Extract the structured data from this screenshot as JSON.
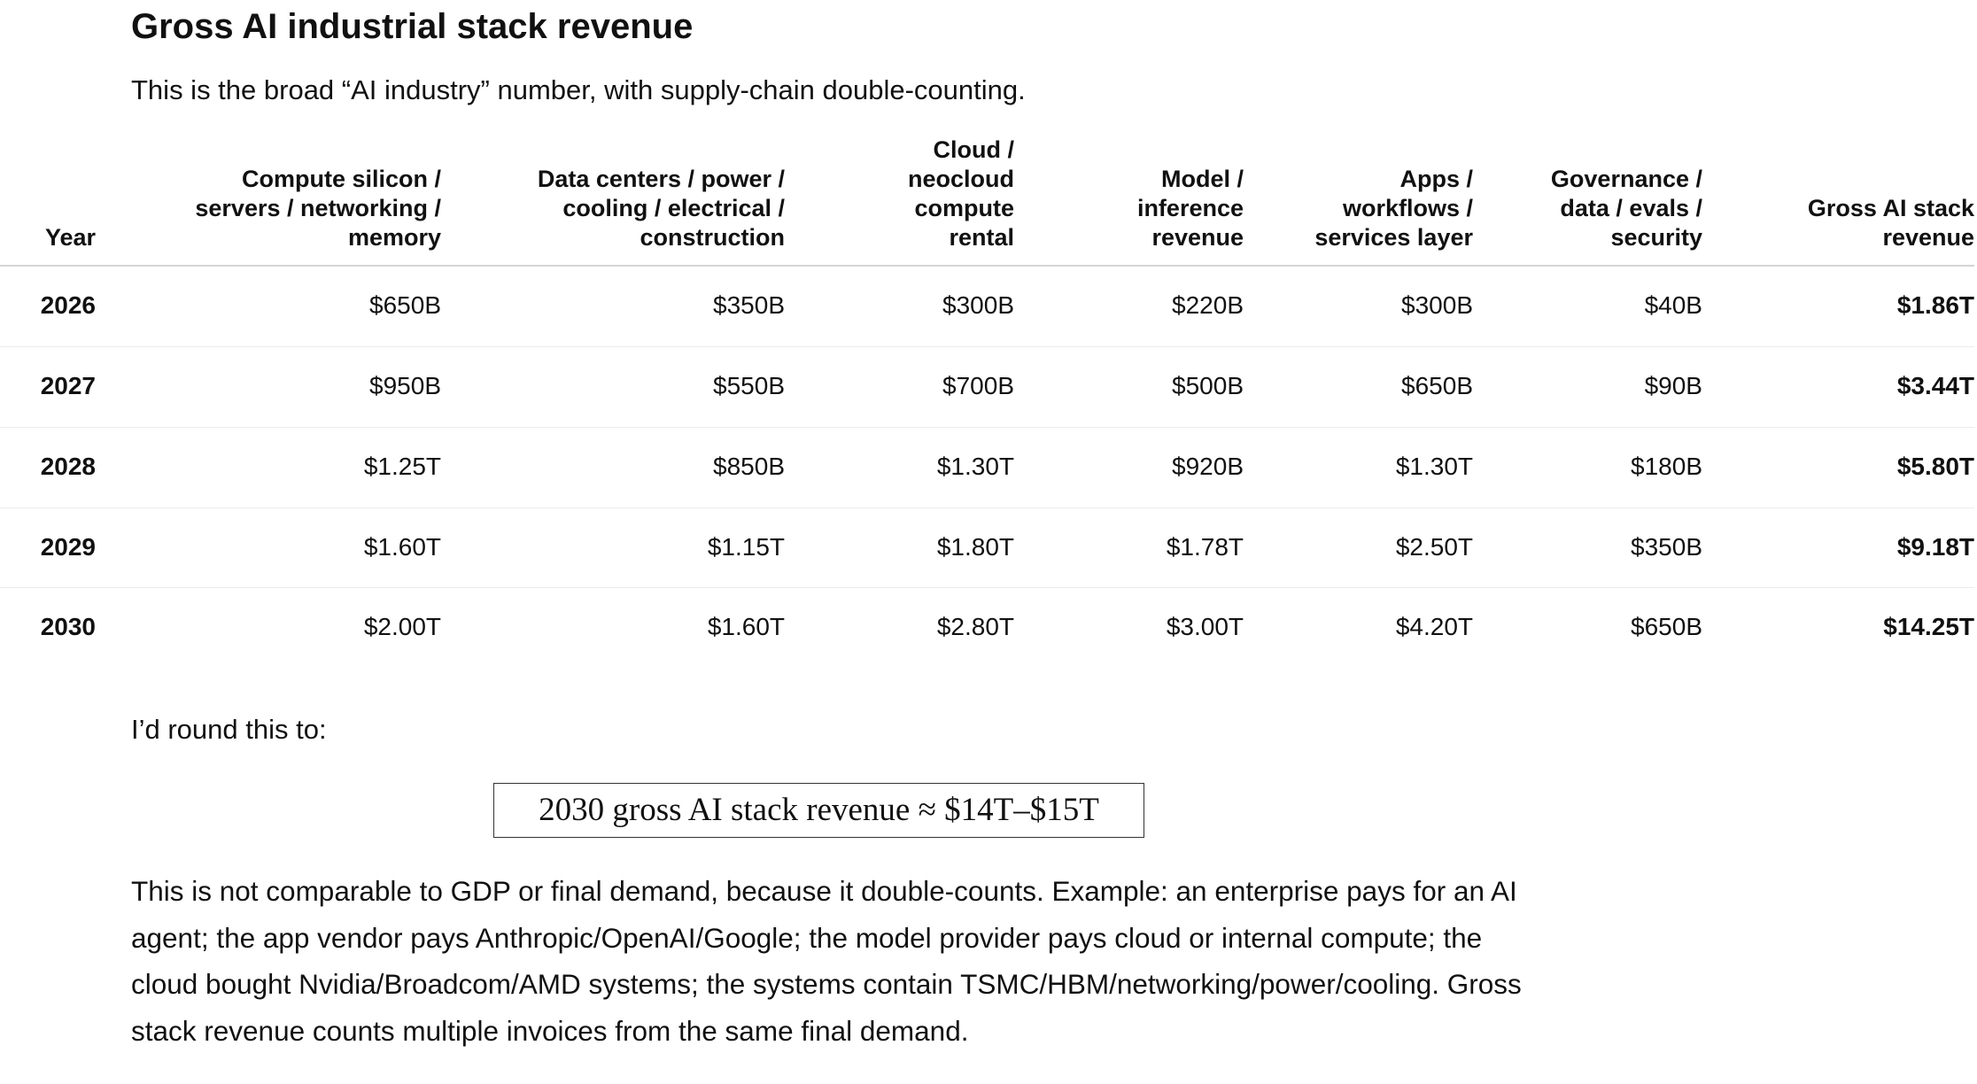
{
  "heading": "Gross AI industrial stack revenue",
  "intro": "This is the broad “AI industry” number, with supply-chain double-counting.",
  "table": {
    "headers": [
      "Year",
      "Compute silicon / servers / networking / memory",
      "Data centers / power / cooling / electrical / construction",
      "Cloud / neocloud compute rental",
      "Model / inference revenue",
      "Apps / workflows / services layer",
      "Governance / data / evals / security",
      "Gross AI stack revenue"
    ],
    "rows": [
      [
        "2026",
        "$650B",
        "$350B",
        "$300B",
        "$220B",
        "$300B",
        "$40B",
        "$1.86T"
      ],
      [
        "2027",
        "$950B",
        "$550B",
        "$700B",
        "$500B",
        "$650B",
        "$90B",
        "$3.44T"
      ],
      [
        "2028",
        "$1.25T",
        "$850B",
        "$1.30T",
        "$920B",
        "$1.30T",
        "$180B",
        "$5.80T"
      ],
      [
        "2029",
        "$1.60T",
        "$1.15T",
        "$1.80T",
        "$1.78T",
        "$2.50T",
        "$350B",
        "$9.18T"
      ],
      [
        "2030",
        "$2.00T",
        "$1.60T",
        "$2.80T",
        "$3.00T",
        "$4.20T",
        "$650B",
        "$14.25T"
      ]
    ]
  },
  "round_note": "I’d round this to:",
  "formula": "2030 gross AI stack revenue ≈ $14T–$15T",
  "paragraph": "This is not comparable to GDP or final demand, because it double-counts. Example: an enterprise pays for an AI agent; the app vendor pays Anthropic/OpenAI/Google; the model provider pays cloud or internal compute; the cloud bought Nvidia/Broadcom/AMD systems; the systems contain TSMC/HBM/networking/power/cooling. Gross stack revenue counts multiple invoices from the same final demand."
}
